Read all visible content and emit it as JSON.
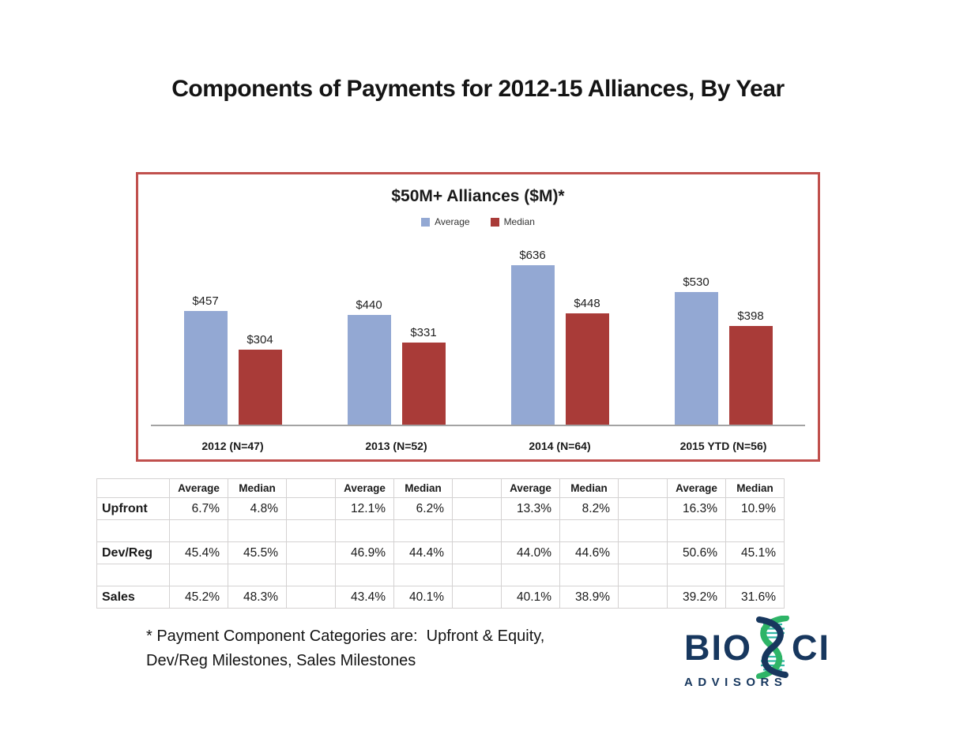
{
  "page": {
    "title": "Components of Payments for 2012-15 Alliances, By Year",
    "footnote_line1": "* Payment Component Categories are:  Upfront & Equity,",
    "footnote_line2": "Dev/Reg Milestones, Sales Milestones"
  },
  "colors": {
    "average_bar": "#93A8D3",
    "median_bar": "#A93B38",
    "chart_border": "#C0504D",
    "axis_line": "#A3A3A3",
    "table_border": "#D4D2D2",
    "logo_navy": "#17375E",
    "logo_green": "#2EB467",
    "logo_teal": "#2FB7A4"
  },
  "chart_data": {
    "type": "bar",
    "title": "$50M+ Alliances ($M)*",
    "subtitle": "",
    "xlabel": "",
    "ylabel": "",
    "ylim": [
      0,
      700
    ],
    "grid": false,
    "data_labels": true,
    "legend_position": "top",
    "categories": [
      "2012 (N=47)",
      "2013 (N=52)",
      "2014 (N=64)",
      "2015 YTD (N=56)"
    ],
    "series": [
      {
        "name": "Average",
        "color": "#93A8D3",
        "values": [
          457,
          440,
          636,
          530
        ],
        "labels": [
          "$457",
          "$440",
          "$636",
          "$530"
        ]
      },
      {
        "name": "Median",
        "color": "#A93B38",
        "values": [
          304,
          331,
          448,
          398
        ],
        "labels": [
          "$304",
          "$331",
          "$448",
          "$398"
        ]
      }
    ]
  },
  "table": {
    "group_headers": [
      "Average",
      "Median"
    ],
    "rows": [
      {
        "label": "Upfront",
        "values": [
          "6.7%",
          "4.8%",
          "12.1%",
          "6.2%",
          "13.3%",
          "8.2%",
          "16.3%",
          "10.9%"
        ]
      },
      {
        "label": "",
        "values": []
      },
      {
        "label": "Dev/Reg",
        "values": [
          "45.4%",
          "45.5%",
          "46.9%",
          "44.4%",
          "44.0%",
          "44.6%",
          "50.6%",
          "45.1%"
        ]
      },
      {
        "label": "",
        "values": []
      },
      {
        "label": "Sales",
        "values": [
          "45.2%",
          "48.3%",
          "43.4%",
          "40.1%",
          "40.1%",
          "38.9%",
          "39.2%",
          "31.6%"
        ]
      }
    ]
  },
  "logo": {
    "text_bio": "BIO",
    "text_ci": "CI",
    "subtext": "ADVISORS"
  }
}
